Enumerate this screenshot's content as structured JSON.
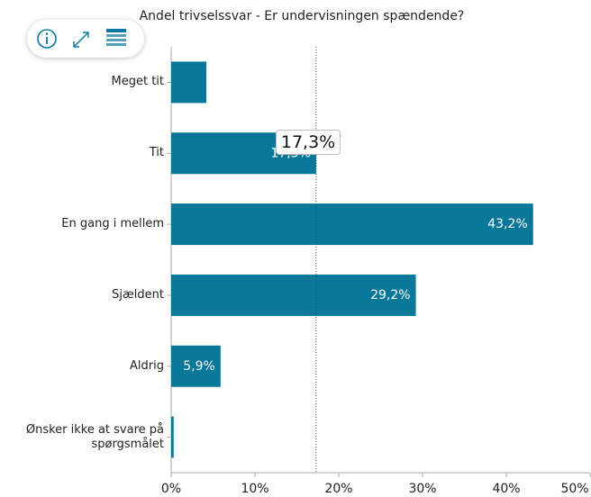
{
  "chart_data": {
    "type": "bar",
    "orientation": "horizontal",
    "title": "Andel trivselssvar - Er undervisningen spændende?",
    "categories": [
      "Meget tit",
      "Tit",
      "En gang i mellem",
      "Sjældent",
      "Aldrig",
      "Ønsker ikke at svare på spørgsmålet"
    ],
    "values": [
      4.2,
      17.3,
      43.2,
      29.2,
      5.9,
      0.3
    ],
    "value_labels": [
      null,
      "17,3%",
      "43,2%",
      "29,2%",
      "5,9%",
      null
    ],
    "color": "#08789a",
    "xlim": [
      0,
      50
    ],
    "xticks": [
      {
        "value": 0,
        "label": "0%"
      },
      {
        "value": 10,
        "label": "10%"
      },
      {
        "value": 20,
        "label": "20%"
      },
      {
        "value": 30,
        "label": "30%"
      },
      {
        "value": 40,
        "label": "40%"
      },
      {
        "value": 50,
        "label": "50%"
      }
    ],
    "tooltip": {
      "category": 1,
      "label": "17,3%"
    }
  }
}
